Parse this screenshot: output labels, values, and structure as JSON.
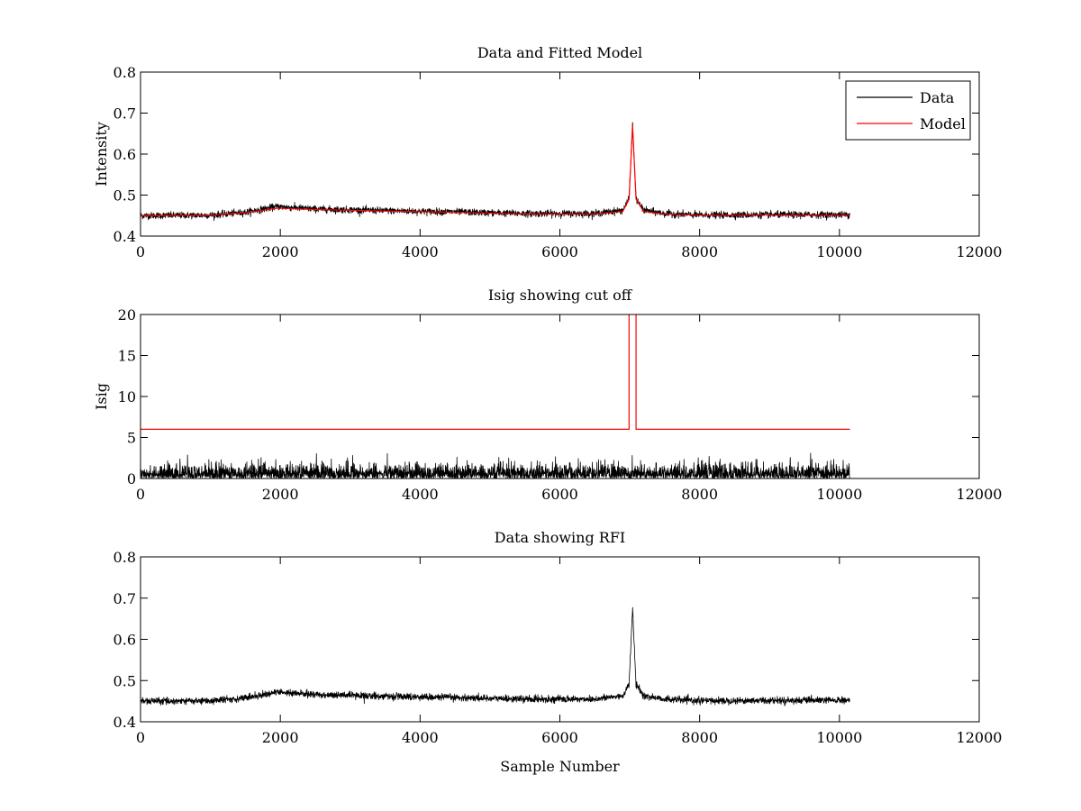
{
  "chart_data": [
    {
      "type": "line",
      "title": "Data and Fitted Model",
      "xlabel": "",
      "ylabel": "Intensity",
      "xlim": [
        0,
        12000
      ],
      "ylim": [
        0.4,
        0.8
      ],
      "xticks": [
        "0",
        "2000",
        "4000",
        "6000",
        "8000",
        "10000",
        "12000"
      ],
      "yticks": [
        "0.4",
        "0.5",
        "0.6",
        "0.7",
        "0.8"
      ],
      "legend": {
        "placement": "top-right",
        "entries": [
          {
            "name": "Data",
            "color": "#000000"
          },
          {
            "name": "Model",
            "color": "#ff0000"
          }
        ]
      },
      "series": [
        {
          "name": "Data",
          "color": "#000000",
          "kind": "noisy",
          "noise": 0.004,
          "x": [
            0,
            1000,
            1500,
            1950,
            2500,
            3500,
            4500,
            5500,
            6500,
            6900,
            6990,
            7040,
            7090,
            7200,
            7500,
            8000,
            9000,
            10150
          ],
          "y": [
            0.45,
            0.451,
            0.458,
            0.472,
            0.466,
            0.462,
            0.459,
            0.455,
            0.455,
            0.463,
            0.49,
            0.675,
            0.49,
            0.463,
            0.455,
            0.451,
            0.452,
            0.452
          ]
        },
        {
          "name": "Model",
          "color": "#ff0000",
          "kind": "smooth",
          "x": [
            0,
            1000,
            1500,
            1950,
            2500,
            3500,
            4500,
            5500,
            6500,
            6900,
            6990,
            7040,
            7090,
            7200,
            7500,
            8000,
            9000,
            10150
          ],
          "y": [
            0.45,
            0.451,
            0.457,
            0.468,
            0.465,
            0.461,
            0.458,
            0.454,
            0.454,
            0.46,
            0.49,
            0.67,
            0.49,
            0.46,
            0.454,
            0.451,
            0.451,
            0.451
          ]
        }
      ]
    },
    {
      "type": "line",
      "title": "Isig showing cut off",
      "xlabel": "",
      "ylabel": "Isig",
      "xlim": [
        0,
        12000
      ],
      "ylim": [
        0,
        20
      ],
      "xticks": [
        "0",
        "2000",
        "4000",
        "6000",
        "8000",
        "10000",
        "12000"
      ],
      "yticks": [
        "0",
        "5",
        "10",
        "15",
        "20"
      ],
      "series": [
        {
          "name": "Isig",
          "color": "#000000",
          "kind": "abs-noise",
          "x_range": [
            0,
            10150
          ],
          "sigma": 0.85,
          "clip": 3.3
        },
        {
          "name": "Cut off",
          "color": "#ff0000",
          "kind": "step",
          "x": [
            0,
            6990,
            6990,
            7090,
            7090,
            10150
          ],
          "y": [
            6,
            6,
            22,
            22,
            6,
            6
          ]
        }
      ]
    },
    {
      "type": "line",
      "title": "Data showing RFI",
      "xlabel": "Sample Number",
      "ylabel": "",
      "xlim": [
        0,
        12000
      ],
      "ylim": [
        0.4,
        0.8
      ],
      "xticks": [
        "0",
        "2000",
        "4000",
        "6000",
        "8000",
        "10000",
        "12000"
      ],
      "yticks": [
        "0.4",
        "0.5",
        "0.6",
        "0.7",
        "0.8"
      ],
      "series": [
        {
          "name": "Data",
          "color": "#000000",
          "kind": "noisy",
          "noise": 0.004,
          "x": [
            0,
            1000,
            1500,
            1950,
            2500,
            3500,
            4500,
            5500,
            6500,
            6900,
            6990,
            7040,
            7090,
            7200,
            7500,
            8000,
            9000,
            10150
          ],
          "y": [
            0.45,
            0.451,
            0.458,
            0.472,
            0.466,
            0.462,
            0.459,
            0.455,
            0.455,
            0.463,
            0.49,
            0.675,
            0.49,
            0.463,
            0.455,
            0.451,
            0.452,
            0.452
          ]
        }
      ]
    }
  ]
}
